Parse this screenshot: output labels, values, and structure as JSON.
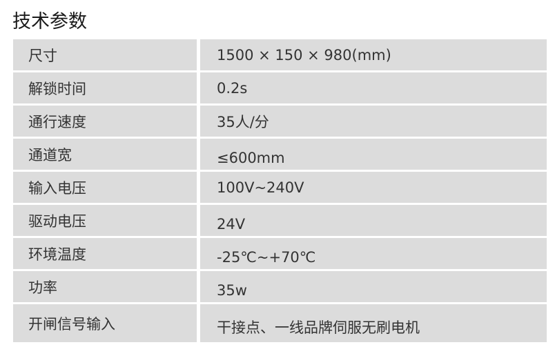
{
  "title": "技术参数",
  "specs": [
    {
      "label": "尺寸",
      "value": "1500 × 150 × 980(mm)"
    },
    {
      "label": "解锁时间",
      "value": "0.2s"
    },
    {
      "label": "通行速度",
      "value": "35人/分"
    },
    {
      "label": "通道宽",
      "value": "≤600mm"
    },
    {
      "label": "输入电压",
      "value": "100V~240V"
    },
    {
      "label": "驱动电压",
      "value": "24V"
    },
    {
      "label": "环境温度",
      "value": "-25℃~+70℃"
    },
    {
      "label": "功率",
      "value": "35w"
    },
    {
      "label": "开闸信号输入",
      "value": "干接点、一线品牌伺服无刷电机"
    }
  ]
}
